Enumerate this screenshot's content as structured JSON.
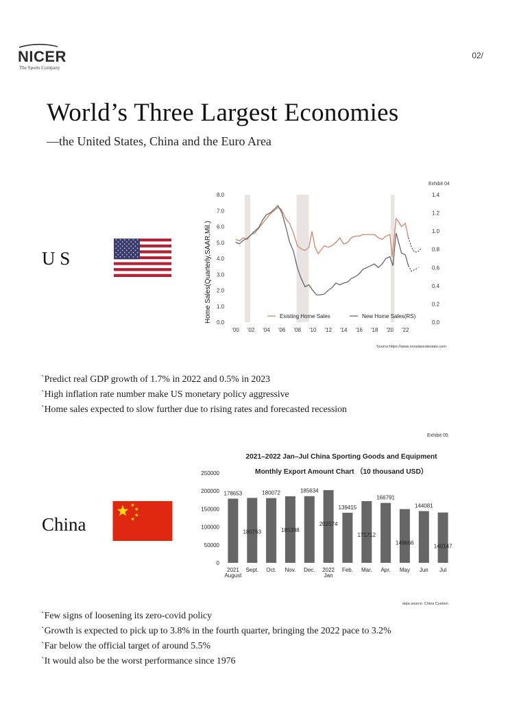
{
  "header": {
    "logo_text": "NICER",
    "logo_subtext": "The Sports Company",
    "page_number": "02/"
  },
  "title": "World’s Three Largest Economies",
  "subtitle": "—the United States, China and the Euro Area",
  "us": {
    "label": "U S",
    "exhibit": "Exhibit 04",
    "source": "Source:https://www.noradarealestate.com",
    "bullets": [
      "`Predict real GDP growth of 1.7% in 2022 and 0.5% in 2023",
      "`High inflation rate number make US monetary policy aggressive",
      "`Home sales expected to slow further due to rising rates and forecasted recession"
    ]
  },
  "china": {
    "label": "China",
    "exhibit": "Exhibit 05",
    "source": "data source: China Custom",
    "bullets": [
      "`Few signs of loosening its zero-covid policy",
      "`Growth is expected to pick up to 3.8% in the fourth quarter, bringing the 2022 pace to 3.2%",
      "`Far below the official target of around 5.5%",
      "`It would also be the worst performance since 1976"
    ]
  },
  "colors": {
    "existing_sales": "#c9876b",
    "new_sales": "#666666",
    "recession_band": "#e8e4e1",
    "bar": "#666666",
    "flag_red": "#de2910",
    "flag_yellow": "#ffde00",
    "us_blue": "#3c3b6e",
    "us_red": "#b22234"
  },
  "chart_data": [
    {
      "type": "line",
      "title": "",
      "ylabel": "Home Sales(Quarterly,SAAR,Mil.)",
      "ylim": [
        0,
        8
      ],
      "y2lim": [
        0,
        1.4
      ],
      "yticks": [
        "0.0",
        "1.0",
        "2.0",
        "3.0",
        "4.0",
        "5.0",
        "6.0",
        "7.0",
        "8.0"
      ],
      "y2ticks": [
        "0.0",
        "0.2",
        "0.4",
        "0.6",
        "0.8",
        "1.0",
        "1.2",
        "1.4"
      ],
      "xticks": [
        "'00",
        "'02",
        "'04",
        "'06",
        "'08",
        "'10",
        "'12",
        "'14",
        "'16",
        "'18",
        "'20",
        "'22"
      ],
      "xtick_years": [
        2000,
        2002,
        2004,
        2006,
        2008,
        2010,
        2012,
        2014,
        2016,
        2018,
        2020,
        2022
      ],
      "xlim": [
        1999.5,
        2024.2
      ],
      "recessions": [
        [
          2001.2,
          2001.9
        ],
        [
          2007.9,
          2009.5
        ],
        [
          2020.1,
          2020.6
        ]
      ],
      "legend": "bottom-center",
      "series": [
        {
          "name": "Existing Home Sales",
          "axis": "left",
          "points": [
            [
              2000,
              5.2
            ],
            [
              2000.5,
              5.1
            ],
            [
              2001,
              5.3
            ],
            [
              2001.5,
              5.2
            ],
            [
              2002,
              5.5
            ],
            [
              2002.5,
              5.6
            ],
            [
              2003,
              5.9
            ],
            [
              2003.5,
              6.2
            ],
            [
              2004,
              6.5
            ],
            [
              2004.5,
              6.8
            ],
            [
              2005,
              7.0
            ],
            [
              2005.5,
              7.2
            ],
            [
              2005.9,
              7.1
            ],
            [
              2006.5,
              6.5
            ],
            [
              2007,
              6.2
            ],
            [
              2007.5,
              5.6
            ],
            [
              2008,
              4.8
            ],
            [
              2008.5,
              4.6
            ],
            [
              2009,
              4.5
            ],
            [
              2009.5,
              4.7
            ],
            [
              2009.9,
              5.7
            ],
            [
              2010.3,
              4.7
            ],
            [
              2010.7,
              4.3
            ],
            [
              2011.5,
              4.8
            ],
            [
              2012,
              4.7
            ],
            [
              2012.5,
              4.8
            ],
            [
              2013,
              5.0
            ],
            [
              2013.5,
              5.3
            ],
            [
              2014,
              4.9
            ],
            [
              2014.5,
              5.0
            ],
            [
              2015,
              5.3
            ],
            [
              2015.5,
              5.4
            ],
            [
              2016,
              5.4
            ],
            [
              2016.5,
              5.5
            ],
            [
              2017,
              5.5
            ],
            [
              2017.5,
              5.5
            ],
            [
              2018,
              5.5
            ],
            [
              2018.5,
              5.3
            ],
            [
              2019,
              5.2
            ],
            [
              2019.5,
              5.4
            ],
            [
              2020,
              5.5
            ],
            [
              2020.3,
              4.1
            ],
            [
              2020.8,
              6.5
            ],
            [
              2021,
              6.4
            ],
            [
              2021.5,
              6.0
            ],
            [
              2022,
              6.2
            ],
            [
              2022.4,
              5.3
            ]
          ],
          "projection": [
            [
              2022.4,
              5.3
            ],
            [
              2022.8,
              4.7
            ],
            [
              2023.2,
              4.4
            ],
            [
              2023.6,
              4.4
            ],
            [
              2024,
              4.6
            ]
          ]
        },
        {
          "name": "New Home Sales(RS)",
          "axis": "right",
          "points": [
            [
              2000,
              0.88
            ],
            [
              2000.5,
              0.86
            ],
            [
              2001,
              0.9
            ],
            [
              2001.5,
              0.92
            ],
            [
              2002,
              0.96
            ],
            [
              2002.5,
              1.0
            ],
            [
              2003,
              1.04
            ],
            [
              2003.5,
              1.12
            ],
            [
              2004,
              1.18
            ],
            [
              2004.5,
              1.2
            ],
            [
              2005,
              1.24
            ],
            [
              2005.5,
              1.28
            ],
            [
              2006,
              1.2
            ],
            [
              2006.5,
              1.05
            ],
            [
              2007,
              0.88
            ],
            [
              2007.5,
              0.78
            ],
            [
              2008,
              0.6
            ],
            [
              2008.5,
              0.48
            ],
            [
              2009,
              0.39
            ],
            [
              2009.5,
              0.41
            ],
            [
              2010,
              0.35
            ],
            [
              2010.5,
              0.3
            ],
            [
              2011,
              0.3
            ],
            [
              2011.5,
              0.31
            ],
            [
              2012,
              0.35
            ],
            [
              2012.5,
              0.38
            ],
            [
              2013,
              0.43
            ],
            [
              2013.5,
              0.41
            ],
            [
              2014,
              0.43
            ],
            [
              2014.5,
              0.44
            ],
            [
              2015,
              0.48
            ],
            [
              2015.5,
              0.5
            ],
            [
              2016,
              0.53
            ],
            [
              2016.5,
              0.58
            ],
            [
              2017,
              0.6
            ],
            [
              2017.5,
              0.62
            ],
            [
              2018,
              0.64
            ],
            [
              2018.5,
              0.6
            ],
            [
              2019,
              0.64
            ],
            [
              2019.5,
              0.7
            ],
            [
              2020,
              0.72
            ],
            [
              2020.4,
              0.62
            ],
            [
              2020.8,
              0.98
            ],
            [
              2021,
              0.92
            ],
            [
              2021.5,
              0.76
            ],
            [
              2022,
              0.74
            ],
            [
              2022.4,
              0.62
            ]
          ],
          "projection": [
            [
              2022.4,
              0.62
            ],
            [
              2022.8,
              0.56
            ],
            [
              2023.3,
              0.58
            ],
            [
              2023.7,
              0.6
            ]
          ]
        }
      ]
    },
    {
      "type": "bar",
      "title": "2021–2022 Jan–Jul China Sporting Goods and Equipment",
      "subtitle": "Monthly Export Amount Chart （10 thousand USD）",
      "ylim": [
        0,
        250000
      ],
      "yticks": [
        "0",
        "50000",
        "100000",
        "150000",
        "200000",
        "250000"
      ],
      "categories": [
        [
          "2021",
          "August"
        ],
        [
          "Sept."
        ],
        [
          "Oct."
        ],
        [
          "Nov."
        ],
        [
          "Dec."
        ],
        [
          "2022",
          "Jan"
        ],
        [
          "Feb."
        ],
        [
          "Mar."
        ],
        [
          "Apr."
        ],
        [
          "May"
        ],
        [
          "Jun"
        ],
        [
          "Jul"
        ]
      ],
      "values": [
        178653,
        180763,
        180072,
        185398,
        185634,
        202574,
        139415,
        171712,
        166791,
        149666,
        144081,
        140147
      ],
      "value_labels": [
        "178653",
        "180763",
        "180072",
        "185398",
        "185634",
        "202574",
        "139415",
        "171712",
        "166791",
        "149666",
        "144081",
        "140147"
      ],
      "label_placement": [
        "above",
        "inside",
        "above",
        "inside",
        "above",
        "inside",
        "above",
        "inside",
        "above",
        "inside",
        "above",
        "inside"
      ]
    }
  ]
}
